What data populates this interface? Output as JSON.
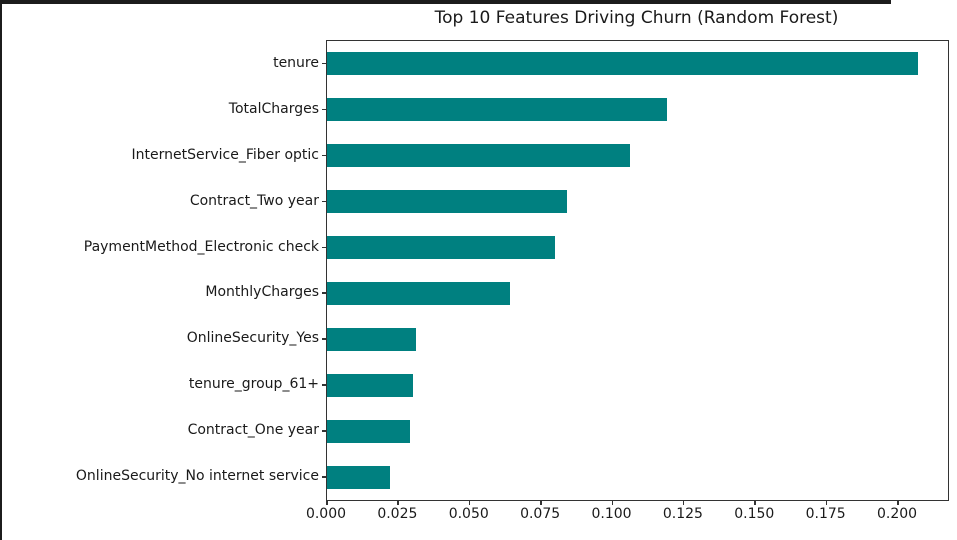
{
  "figure": {
    "background": "#ffffff",
    "frame_top_color": "#1c1c1c",
    "frame_left_color": "#1c1c1c",
    "spine_color": "#333333",
    "text_color": "#1a1a1a"
  },
  "chart_data": {
    "type": "bar",
    "orientation": "horizontal",
    "title": "Top 10 Features Driving Churn (Random Forest)",
    "categories": [
      "tenure",
      "TotalCharges",
      "InternetService_Fiber optic",
      "Contract_Two year",
      "PaymentMethod_Electronic check",
      "MonthlyCharges",
      "OnlineSecurity_Yes",
      "tenure_group_61+",
      "Contract_One year",
      "OnlineSecurity_No internet service"
    ],
    "values": [
      0.207,
      0.119,
      0.106,
      0.084,
      0.08,
      0.064,
      0.031,
      0.03,
      0.029,
      0.022
    ],
    "xlabel": "",
    "ylabel": "",
    "xlim": [
      0,
      0.2175
    ],
    "xtick_labels": [
      "0.000",
      "0.025",
      "0.050",
      "0.075",
      "0.100",
      "0.125",
      "0.150",
      "0.175",
      "0.200"
    ],
    "xtick_values": [
      0.0,
      0.025,
      0.05,
      0.075,
      0.1,
      0.125,
      0.15,
      0.175,
      0.2
    ],
    "bar_color": "#008080",
    "grid": false,
    "legend": null
  }
}
